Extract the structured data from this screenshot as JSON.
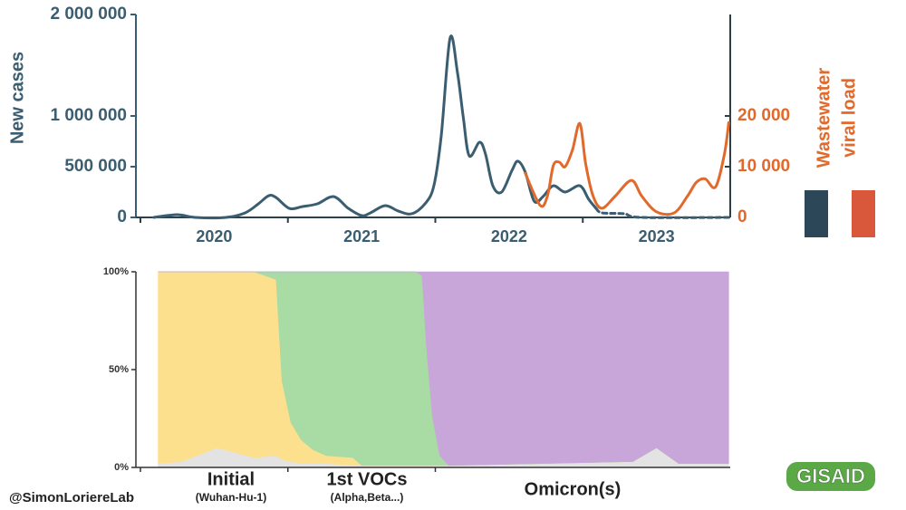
{
  "chart_data": [
    {
      "type": "line",
      "ylabel": "New cases",
      "y2label": [
        "Wastewater",
        "viral load"
      ],
      "xlim": [
        2020,
        2024
      ],
      "year_boundaries": [
        2020,
        2021,
        2022,
        2023
      ],
      "xticks": [
        {
          "value": 2020.5,
          "label": "2020"
        },
        {
          "value": 2021.5,
          "label": "2021"
        },
        {
          "value": 2022.5,
          "label": "2022"
        },
        {
          "value": 2023.5,
          "label": "2023"
        }
      ],
      "ylim": [
        0,
        2000000
      ],
      "yticks": [
        0,
        {
          "value": 500000,
          "label": "500 000"
        },
        {
          "value": 1000000,
          "label": "1 000 000"
        },
        {
          "value": 2000000,
          "label": "2 000 000"
        }
      ],
      "y2lim": [
        0,
        40000
      ],
      "y2ticks": [
        0,
        {
          "value": 10000,
          "label": "10 000"
        },
        {
          "value": 20000,
          "label": "20 000"
        }
      ],
      "legend_colors": [
        "#2c4757",
        "#d9573a"
      ],
      "series": [
        {
          "color": "#3b5d70",
          "x": [
            2020.09,
            2020.25,
            2020.37,
            2020.58,
            2020.71,
            2020.8,
            2020.87,
            2020.92,
            2021.01,
            2021.1,
            2021.2,
            2021.31,
            2021.41,
            2021.5,
            2021.56,
            2021.66,
            2021.75,
            2021.84,
            2021.93,
            2021.99,
            2022.04,
            2022.1,
            2022.15,
            2022.19,
            2022.23,
            2022.3,
            2022.34,
            2022.39,
            2022.45,
            2022.52,
            2022.56,
            2022.61,
            2022.67,
            2022.73,
            2022.8,
            2022.88,
            2022.98,
            2023.04,
            2023.09
          ],
          "values": [
            0,
            27000,
            0,
            0,
            45000,
            134000,
            214000,
            196000,
            89000,
            107000,
            134000,
            205000,
            89000,
            18000,
            45000,
            116000,
            62000,
            36000,
            134000,
            312000,
            804000,
            1768000,
            1429000,
            982000,
            607000,
            741000,
            625000,
            312000,
            250000,
            464000,
            554000,
            446000,
            161000,
            205000,
            312000,
            250000,
            312000,
            179000,
            89000
          ]
        },
        {
          "color": "#3b5d70",
          "dashed": true,
          "x": [
            2023.09,
            2023.13,
            2023.28,
            2023.4,
            2023.99
          ],
          "values": [
            89000,
            45000,
            36000,
            0,
            0
          ]
        },
        {
          "color": "#e1692b",
          "axis": "y2",
          "x": [
            2022.61,
            2022.71,
            2022.76,
            2022.8,
            2022.84,
            2022.88,
            2022.93,
            2022.98,
            2023.02,
            2023.07,
            2023.13,
            2023.22,
            2023.33,
            2023.4,
            2023.5,
            2023.62,
            2023.71,
            2023.77,
            2023.83,
            2023.9,
            2023.96,
            2023.99
          ],
          "values": [
            8700,
            2400,
            4200,
            10200,
            10900,
            10000,
            13300,
            18500,
            10500,
            4200,
            1800,
            4200,
            7300,
            4200,
            1100,
            900,
            4200,
            6900,
            7600,
            6000,
            12400,
            18700
          ]
        }
      ]
    },
    {
      "type": "area",
      "stacked": true,
      "xlim": [
        2020,
        2024
      ],
      "xticks": [
        2020,
        2021,
        2022
      ],
      "ylim": [
        0,
        100
      ],
      "yticks": [
        {
          "value": 0,
          "label": "0%"
        },
        {
          "value": 50,
          "label": "50%"
        },
        {
          "value": 100,
          "label": "100%"
        }
      ],
      "x": [
        2020.12,
        2020.28,
        2020.52,
        2020.77,
        2020.92,
        2020.96,
        2021.02,
        2021.09,
        2021.17,
        2021.26,
        2021.44,
        2021.5,
        2021.87,
        2021.91,
        2021.94,
        2021.98,
        2022.03,
        2022.09,
        2022.73,
        2023.34,
        2023.5,
        2023.65,
        2023.99
      ],
      "series": [
        {
          "color": "#e3e3e3",
          "values": [
            2,
            3,
            10,
            5,
            6,
            4,
            3,
            2,
            2,
            2,
            1,
            1,
            1,
            1,
            1,
            1,
            1,
            1,
            2,
            3,
            10,
            2,
            2
          ]
        },
        {
          "name": "Initial",
          "note": "(Wuhan-Hu-1)",
          "color": "#fde08e",
          "values": [
            98,
            97,
            90,
            95,
            90,
            40,
            20,
            12,
            7,
            4,
            4,
            0,
            0,
            0,
            0,
            0,
            0,
            0,
            0,
            0,
            0,
            0,
            0
          ]
        },
        {
          "name": "1st VOCs",
          "note": "(Alpha,Beta...)",
          "color": "#a9dca4",
          "values": [
            0,
            0,
            0,
            0,
            4,
            56,
            77,
            86,
            91,
            94,
            95,
            99,
            99,
            97,
            60,
            25,
            5,
            0,
            0,
            0,
            0,
            0,
            0
          ]
        },
        {
          "name": "Omicron(s)",
          "color": "#c8a6d9",
          "values": [
            0,
            0,
            0,
            0,
            0,
            0,
            0,
            0,
            0,
            0,
            0,
            0,
            0,
            2,
            39,
            74,
            94,
            99,
            98,
            97,
            90,
            98,
            98
          ]
        }
      ]
    }
  ],
  "credit": "@SimonLoriereLab",
  "logo": "GISAID"
}
